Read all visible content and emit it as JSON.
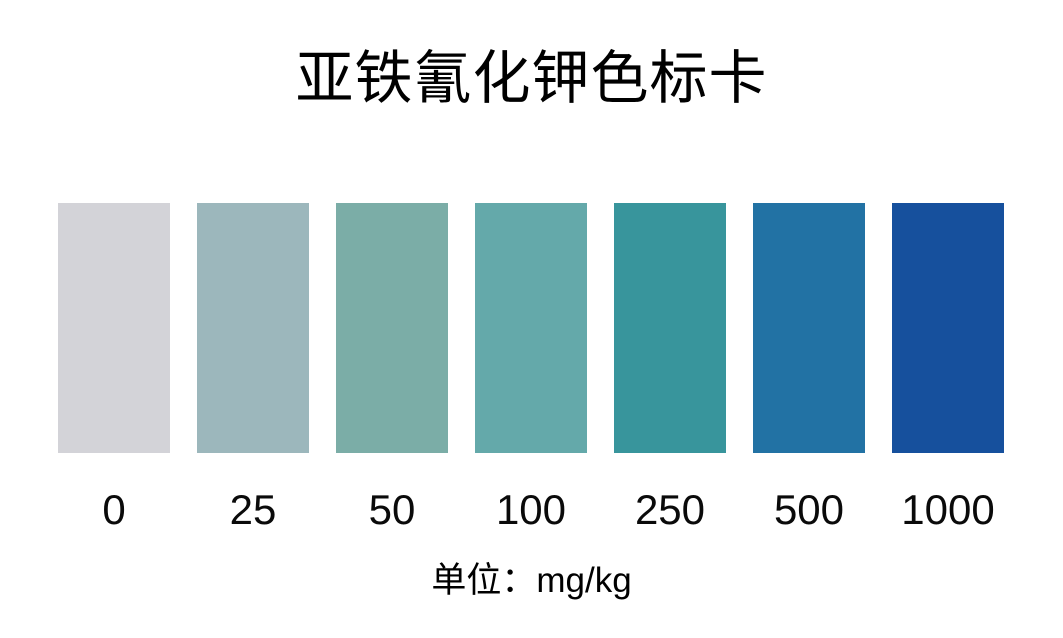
{
  "page": {
    "background": "#ffffff",
    "title": "亚铁氰化钾色标卡",
    "unit_label": "单位：mg/kg",
    "text_color": "#000000"
  },
  "chart_data": {
    "type": "heatmap",
    "subtype": "color-reference-card",
    "title": "亚铁氰化钾色标卡",
    "unit": "mg/kg",
    "categories": [
      "0",
      "25",
      "50",
      "100",
      "250",
      "500",
      "1000"
    ],
    "values": [
      0,
      25,
      50,
      100,
      250,
      500,
      1000
    ],
    "colors": [
      "#d3d3d8",
      "#9cb7bc",
      "#7bada7",
      "#64a9aa",
      "#38959c",
      "#2272a4",
      "#16509d"
    ],
    "legend_position": "none",
    "grid": false,
    "orientation": "horizontal-row-of-swatches"
  }
}
